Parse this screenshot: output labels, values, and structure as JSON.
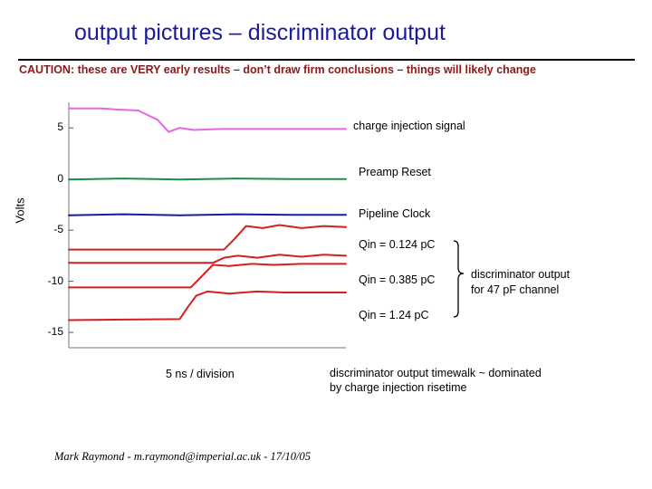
{
  "title": "output pictures – discriminator output",
  "caution": "CAUTION: these are VERY early results – don’t draw firm conclusions – things will likely change",
  "colors": {
    "title": "#1a1aa0",
    "caution": "#8b1a1a",
    "charge_injection": "#e866e0",
    "preamp_reset": "#1a8f4a",
    "pipeline_clock": "#1a1aa0",
    "discriminator": "#d42020"
  },
  "labels": {
    "charge_injection": "charge injection signal",
    "preamp_reset": "Preamp Reset",
    "pipeline_clock": "Pipeline Clock",
    "qin_low": "Qin = 0.124 pC",
    "qin_mid": "Qin = 0.385 pC",
    "qin_high": "Qin = 1.24 pC",
    "discriminator_line1": "discriminator output",
    "discriminator_line2": "for 47 pF channel",
    "timewalk_line1": "discriminator output timewalk ~ dominated",
    "timewalk_line2": "by charge injection risetime"
  },
  "footer": "Mark Raymond - m.raymond@imperial.ac.uk - 17/10/05",
  "chart_data": {
    "type": "line",
    "title": "",
    "xlabel": "5 ns / division",
    "ylabel": "Volts",
    "ylim": [
      -16.5,
      7.5
    ],
    "xlim": [
      0,
      10
    ],
    "yticks": [
      5,
      0,
      -5,
      -10,
      -15
    ],
    "ytick_labels": [
      "5",
      "0",
      "-5",
      "-10",
      "-15"
    ],
    "series": [
      {
        "name": "charge injection signal",
        "color": "#e866e0",
        "x": [
          0,
          1.2,
          1.7,
          2.5,
          3.2,
          3.6,
          4.0,
          4.5,
          5.5,
          7.0,
          8.5,
          10
        ],
        "y": [
          6.9,
          6.9,
          6.8,
          6.7,
          5.8,
          4.6,
          5.0,
          4.8,
          4.9,
          4.9,
          4.9,
          4.9
        ]
      },
      {
        "name": "Preamp Reset",
        "color": "#1a8f4a",
        "x": [
          0,
          2,
          4,
          6,
          8,
          10
        ],
        "y": [
          -0.05,
          0.05,
          -0.05,
          0.05,
          0.0,
          0.0
        ]
      },
      {
        "name": "Pipeline Clock",
        "color": "#1a1aa0",
        "x": [
          0,
          2,
          4,
          6,
          8,
          10
        ],
        "y": [
          -3.55,
          -3.45,
          -3.55,
          -3.45,
          -3.5,
          -3.5
        ]
      },
      {
        "name": "Qin = 0.124 pC (upper)",
        "color": "#d42020",
        "x": [
          0,
          5.6,
          6.0,
          6.4,
          7.0,
          7.6,
          8.4,
          9.2,
          10
        ],
        "y": [
          -6.9,
          -6.9,
          -5.8,
          -4.6,
          -4.8,
          -4.5,
          -4.8,
          -4.6,
          -4.7
        ]
      },
      {
        "name": "Qin = 0.124 pC (lower)",
        "color": "#d42020",
        "x": [
          0,
          5.2,
          5.6,
          6.1,
          6.8,
          7.6,
          8.4,
          9.2,
          10
        ],
        "y": [
          -8.2,
          -8.2,
          -7.7,
          -7.5,
          -7.7,
          -7.4,
          -7.6,
          -7.4,
          -7.5
        ]
      },
      {
        "name": "Qin = 0.385 pC",
        "color": "#d42020",
        "x": [
          0,
          4.4,
          4.8,
          5.2,
          5.8,
          6.6,
          7.4,
          8.4,
          10
        ],
        "y": [
          -10.6,
          -10.6,
          -9.5,
          -8.4,
          -8.5,
          -8.3,
          -8.4,
          -8.3,
          -8.3
        ]
      },
      {
        "name": "Qin = 1.24 pC",
        "color": "#d42020",
        "x": [
          0,
          4.0,
          4.3,
          4.6,
          5.0,
          5.8,
          6.8,
          7.8,
          10
        ],
        "y": [
          -13.8,
          -13.7,
          -12.5,
          -11.4,
          -11.0,
          -11.2,
          -11.0,
          -11.1,
          -11.1
        ]
      }
    ]
  }
}
